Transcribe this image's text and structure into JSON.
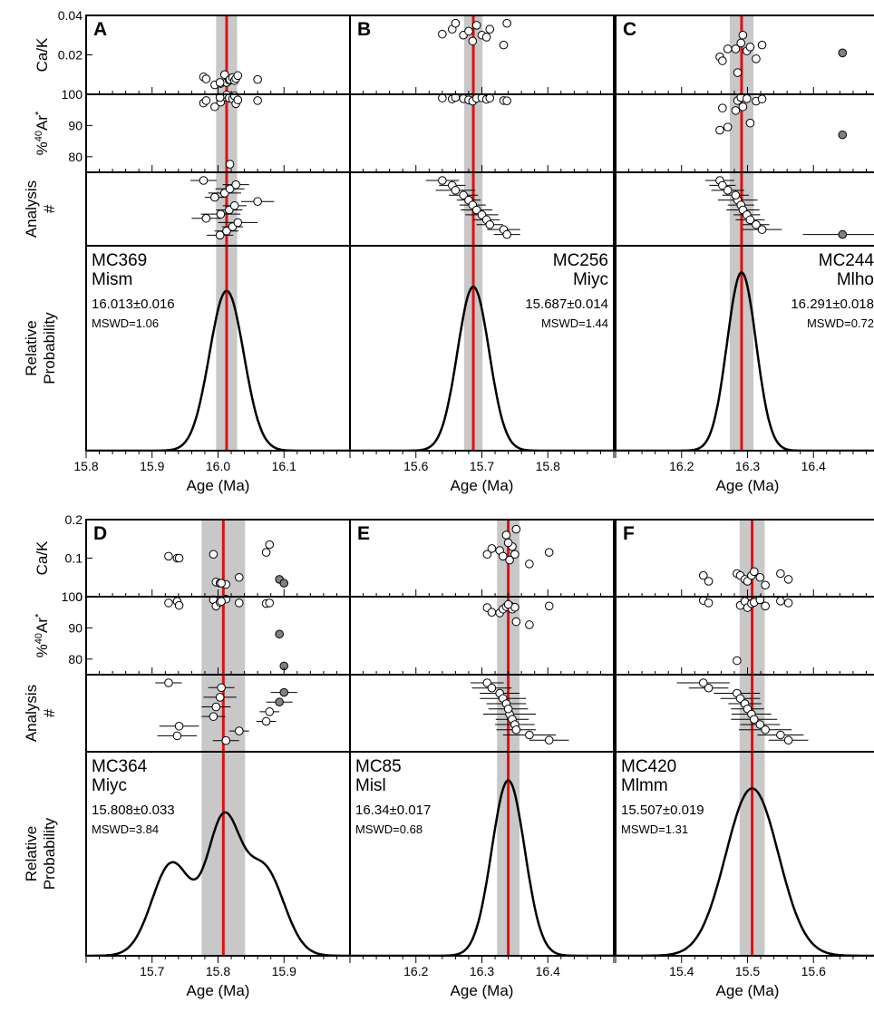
{
  "figure": {
    "ylabels": {
      "cak": "Ca/K",
      "ar_prefix": "%",
      "ar_sup": "40",
      "ar_main": "Ar",
      "ar_star": "*",
      "analysis": "Analysis",
      "analysis_hash": "#",
      "relprob_1": "Relative",
      "relprob_2": "Probability"
    },
    "xlabel": "Age (Ma)"
  },
  "colors": {
    "mean_line": "#e01010",
    "error_band": "#c8c8c8",
    "curve": "#000000",
    "open_marker": "#ffffff",
    "filled_marker": "#808080"
  },
  "chart_data": [
    {
      "panel": "A",
      "type": "scatter",
      "sample": "MC369",
      "unit": "Mism",
      "age": "16.013±0.016",
      "mswd": "MSWD=1.06",
      "mean": 16.013,
      "err": 0.016,
      "xlim": [
        15.8,
        16.2
      ],
      "xticks": [
        "15.8",
        "15.9",
        "16.0",
        "16.1"
      ],
      "xtick_values": [
        15.8,
        15.9,
        16.0,
        16.1
      ],
      "cak_ylim": [
        0,
        0.04
      ],
      "cak_ticks": [
        "0.04",
        "0.02"
      ],
      "cak_tick_values": [
        0.04,
        0.02
      ],
      "ar_ylim": [
        75,
        100
      ],
      "ar_ticks": [
        "100",
        "90",
        "80"
      ],
      "ar_tick_values": [
        100,
        90,
        80
      ],
      "curve": {
        "components": [
          {
            "mu": 16.013,
            "sigma": 0.026,
            "w": 1
          }
        ],
        "peak": 0.78
      },
      "points": [
        {
          "age": 15.978,
          "cak": 0.0088,
          "ar": 97.2,
          "err": 0.02
        },
        {
          "age": 15.982,
          "cak": 0.0078,
          "ar": 98.0,
          "err": 0.022
        },
        {
          "age": 15.995,
          "cak": 0.0048,
          "ar": 96.0,
          "err": 0.015
        },
        {
          "age": 16.004,
          "cak": 0.0055,
          "ar": 97.5,
          "err": 0.03
        },
        {
          "age": 16.01,
          "cak": 0.01,
          "ar": 99.2,
          "err": 0.025
        },
        {
          "age": 16.013,
          "cak": 0.006,
          "ar": 99.8,
          "err": 0.018
        },
        {
          "age": 16.017,
          "cak": 0.007,
          "ar": 98.8,
          "err": 0.02
        },
        {
          "age": 16.018,
          "cak": 0.0075,
          "ar": 77.6,
          "err": 0.022
        },
        {
          "age": 16.022,
          "cak": 0.0085,
          "ar": 98.5,
          "err": 0.016
        },
        {
          "age": 16.025,
          "cak": 0.007,
          "ar": 99.5,
          "err": 0.018
        },
        {
          "age": 16.027,
          "cak": 0.008,
          "ar": 97.0,
          "err": 0.02
        },
        {
          "age": 16.03,
          "cak": 0.0095,
          "ar": 98.2,
          "err": 0.03
        },
        {
          "age": 16.06,
          "cak": 0.0075,
          "ar": 98.0,
          "err": 0.025
        },
        {
          "age": 16.003,
          "cak": 0.006,
          "ar": 99.0,
          "err": 0.02
        }
      ],
      "label_side": "left"
    },
    {
      "panel": "B",
      "type": "scatter",
      "sample": "MC256",
      "unit": "Miyc",
      "age": "15.687±0.014",
      "mswd": "MSWD=1.44",
      "mean": 15.687,
      "err": 0.014,
      "xlim": [
        15.5,
        15.9
      ],
      "xticks": [
        "15.6",
        "15.7",
        "15.8"
      ],
      "xtick_values": [
        15.6,
        15.7,
        15.8
      ],
      "cak_ylim": [
        0,
        0.04
      ],
      "cak_ticks": [],
      "cak_tick_values": [],
      "ar_ylim": [
        75,
        100
      ],
      "ar_ticks": [],
      "ar_tick_values": [],
      "curve": {
        "components": [
          {
            "mu": 15.687,
            "sigma": 0.024,
            "w": 1
          }
        ],
        "peak": 0.8
      },
      "points": [
        {
          "age": 15.64,
          "cak": 0.0305,
          "ar": 98.8,
          "err": 0.025
        },
        {
          "age": 15.655,
          "cak": 0.033,
          "ar": 98.5,
          "err": 0.02
        },
        {
          "age": 15.66,
          "cak": 0.036,
          "ar": 99.0,
          "err": 0.03
        },
        {
          "age": 15.672,
          "cak": 0.03,
          "ar": 98.6,
          "err": 0.022
        },
        {
          "age": 15.68,
          "cak": 0.032,
          "ar": 98.2,
          "err": 0.018
        },
        {
          "age": 15.686,
          "cak": 0.027,
          "ar": 97.8,
          "err": 0.02
        },
        {
          "age": 15.692,
          "cak": 0.035,
          "ar": 98.7,
          "err": 0.024
        },
        {
          "age": 15.7,
          "cak": 0.03,
          "ar": 98.9,
          "err": 0.025
        },
        {
          "age": 15.707,
          "cak": 0.029,
          "ar": 98.4,
          "err": 0.02
        },
        {
          "age": 15.712,
          "cak": 0.033,
          "ar": 98.8,
          "err": 0.02
        },
        {
          "age": 15.733,
          "cak": 0.025,
          "ar": 98.0,
          "err": 0.025
        },
        {
          "age": 15.738,
          "cak": 0.036,
          "ar": 97.9,
          "err": 0.02
        }
      ],
      "label_side": "right"
    },
    {
      "panel": "C",
      "type": "scatter",
      "sample": "MC244",
      "unit": "Mlho",
      "age": "16.291±0.018",
      "mswd": "MSWD=0.72",
      "mean": 16.291,
      "err": 0.018,
      "xlim": [
        16.1,
        16.5
      ],
      "xticks": [
        "16.2",
        "16.3",
        "16.4"
      ],
      "xtick_values": [
        16.2,
        16.3,
        16.4
      ],
      "cak_ylim": [
        0,
        0.04
      ],
      "cak_ticks": [],
      "cak_tick_values": [],
      "ar_ylim": [
        75,
        100
      ],
      "ar_ticks": [],
      "ar_tick_values": [],
      "curve": {
        "components": [
          {
            "mu": 16.291,
            "sigma": 0.022,
            "w": 1
          }
        ],
        "peak": 0.87
      },
      "points": [
        {
          "age": 16.258,
          "cak": 0.019,
          "ar": 88.5,
          "err": 0.022
        },
        {
          "age": 16.262,
          "cak": 0.017,
          "ar": 95.6,
          "err": 0.02
        },
        {
          "age": 16.27,
          "cak": 0.023,
          "ar": 89.5,
          "err": 0.025
        },
        {
          "age": 16.285,
          "cak": 0.011,
          "ar": 98.0,
          "err": 0.03
        },
        {
          "age": 16.29,
          "cak": 0.026,
          "ar": 99.0,
          "err": 0.02
        },
        {
          "age": 16.293,
          "cak": 0.03,
          "ar": 96.0,
          "err": 0.025
        },
        {
          "age": 16.299,
          "cak": 0.022,
          "ar": 98.6,
          "err": 0.02
        },
        {
          "age": 16.304,
          "cak": 0.024,
          "ar": 90.8,
          "err": 0.022
        },
        {
          "age": 16.313,
          "cak": 0.018,
          "ar": 97.8,
          "err": 0.02
        },
        {
          "age": 16.322,
          "cak": 0.025,
          "ar": 98.5,
          "err": 0.03
        },
        {
          "age": 16.282,
          "cak": 0.023,
          "ar": 94.8,
          "err": 0.02
        },
        {
          "age": 16.444,
          "cak": 0.021,
          "ar": 87.0,
          "err": 0.06,
          "filled": true
        }
      ],
      "label_side": "right"
    },
    {
      "panel": "D",
      "type": "scatter",
      "sample": "MC364",
      "unit": "Miyc",
      "age": "15.808±0.033",
      "mswd": "MSWD=3.84",
      "mean": 15.808,
      "err": 0.033,
      "xlim": [
        15.6,
        16.0
      ],
      "xticks": [
        "15.7",
        "15.8",
        "15.9"
      ],
      "xtick_values": [
        15.7,
        15.8,
        15.9
      ],
      "cak_ylim": [
        0,
        0.2
      ],
      "cak_ticks": [
        "0.2",
        "0.1",
        "0"
      ],
      "cak_tick_values": [
        0.2,
        0.1,
        0
      ],
      "ar_ylim": [
        75,
        100
      ],
      "ar_ticks": [
        "100",
        "90",
        "80"
      ],
      "ar_tick_values": [
        100,
        90,
        80
      ],
      "curve": {
        "components": [
          {
            "mu": 15.73,
            "sigma": 0.03,
            "w": 0.3
          },
          {
            "mu": 15.808,
            "sigma": 0.025,
            "w": 0.42
          },
          {
            "mu": 15.87,
            "sigma": 0.03,
            "w": 0.28
          }
        ],
        "peak": 0.7
      },
      "points": [
        {
          "age": 15.725,
          "cak": 0.105,
          "ar": 98.0,
          "err": 0.02
        },
        {
          "age": 15.738,
          "cak": 0.1,
          "ar": 98.5,
          "err": 0.03
        },
        {
          "age": 15.741,
          "cak": 0.1,
          "ar": 97.2,
          "err": 0.03
        },
        {
          "age": 15.793,
          "cak": 0.11,
          "ar": 99.0,
          "err": 0.018
        },
        {
          "age": 15.797,
          "cak": 0.038,
          "ar": 97.0,
          "err": 0.022
        },
        {
          "age": 15.803,
          "cak": 0.035,
          "ar": 98.2,
          "err": 0.025
        },
        {
          "age": 15.812,
          "cak": 0.032,
          "ar": 99.2,
          "err": 0.02
        },
        {
          "age": 15.832,
          "cak": 0.05,
          "ar": 98.0,
          "err": 0.015
        },
        {
          "age": 15.873,
          "cak": 0.115,
          "ar": 97.8,
          "err": 0.015
        },
        {
          "age": 15.878,
          "cak": 0.135,
          "ar": 98.0,
          "err": 0.015
        },
        {
          "age": 15.805,
          "cak": 0.035,
          "ar": 98.5,
          "err": 0.02
        },
        {
          "age": 15.893,
          "cak": 0.045,
          "ar": 88.0,
          "err": 0.02,
          "filled": true
        },
        {
          "age": 15.9,
          "cak": 0.035,
          "ar": 77.8,
          "err": 0.02,
          "filled": true
        }
      ],
      "label_side": "left"
    },
    {
      "panel": "E",
      "type": "scatter",
      "sample": "MC85",
      "unit": "Misl",
      "age": "16.34±0.017",
      "mswd": "MSWD=0.68",
      "mean": 16.34,
      "err": 0.017,
      "xlim": [
        16.1,
        16.5
      ],
      "xticks": [
        "16.2",
        "16.3",
        "16.4"
      ],
      "xtick_values": [
        16.2,
        16.3,
        16.4
      ],
      "cak_ylim": [
        0,
        0.2
      ],
      "cak_ticks": [],
      "cak_tick_values": [],
      "ar_ylim": [
        75,
        100
      ],
      "ar_ticks": [],
      "ar_tick_values": [],
      "curve": {
        "components": [
          {
            "mu": 16.34,
            "sigma": 0.025,
            "w": 1
          }
        ],
        "peak": 0.86
      },
      "points": [
        {
          "age": 16.308,
          "cak": 0.11,
          "ar": 96.5,
          "err": 0.025
        },
        {
          "age": 16.315,
          "cak": 0.125,
          "ar": 95.0,
          "err": 0.03
        },
        {
          "age": 16.327,
          "cak": 0.12,
          "ar": 94.8,
          "err": 0.03
        },
        {
          "age": 16.332,
          "cak": 0.105,
          "ar": 96.0,
          "err": 0.035
        },
        {
          "age": 16.337,
          "cak": 0.16,
          "ar": 96.8,
          "err": 0.03
        },
        {
          "age": 16.342,
          "cak": 0.095,
          "ar": 97.2,
          "err": 0.04
        },
        {
          "age": 16.346,
          "cak": 0.13,
          "ar": 96.0,
          "err": 0.025
        },
        {
          "age": 16.35,
          "cak": 0.11,
          "ar": 96.6,
          "err": 0.03
        },
        {
          "age": 16.352,
          "cak": 0.175,
          "ar": 92.0,
          "err": 0.03
        },
        {
          "age": 16.372,
          "cak": 0.085,
          "ar": 91.0,
          "err": 0.04
        },
        {
          "age": 16.402,
          "cak": 0.115,
          "ar": 97.0,
          "err": 0.03
        },
        {
          "age": 16.34,
          "cak": 0.14,
          "ar": 97.5,
          "err": 0.03
        }
      ],
      "label_side": "left"
    },
    {
      "panel": "F",
      "type": "scatter",
      "sample": "MC420",
      "unit": "Mlmm",
      "age": "15.507±0.019",
      "mswd": "MSWD=1.31",
      "mean": 15.507,
      "err": 0.019,
      "xlim": [
        15.3,
        15.7
      ],
      "xticks": [
        "15.4",
        "15.5",
        "15.6"
      ],
      "xtick_values": [
        15.4,
        15.5,
        15.6
      ],
      "cak_ylim": [
        0,
        0.2
      ],
      "cak_ticks": [],
      "cak_tick_values": [],
      "ar_ylim": [
        75,
        100
      ],
      "ar_ticks": [],
      "ar_tick_values": [],
      "curve": {
        "components": [
          {
            "mu": 15.507,
            "sigma": 0.04,
            "w": 1
          }
        ],
        "peak": 0.82
      },
      "points": [
        {
          "age": 15.433,
          "cak": 0.055,
          "ar": 98.8,
          "err": 0.04
        },
        {
          "age": 15.441,
          "cak": 0.04,
          "ar": 98.0,
          "err": 0.03
        },
        {
          "age": 15.484,
          "cak": 0.06,
          "ar": 79.5,
          "err": 0.035
        },
        {
          "age": 15.489,
          "cak": 0.055,
          "ar": 97.2,
          "err": 0.03
        },
        {
          "age": 15.496,
          "cak": 0.045,
          "ar": 98.5,
          "err": 0.025
        },
        {
          "age": 15.5,
          "cak": 0.04,
          "ar": 96.5,
          "err": 0.025
        },
        {
          "age": 15.506,
          "cak": 0.055,
          "ar": 97.8,
          "err": 0.03
        },
        {
          "age": 15.51,
          "cak": 0.065,
          "ar": 98.2,
          "err": 0.035
        },
        {
          "age": 15.519,
          "cak": 0.05,
          "ar": 99.0,
          "err": 0.03
        },
        {
          "age": 15.527,
          "cak": 0.03,
          "ar": 97.0,
          "err": 0.04
        },
        {
          "age": 15.55,
          "cak": 0.06,
          "ar": 98.6,
          "err": 0.035
        },
        {
          "age": 15.562,
          "cak": 0.045,
          "ar": 98.0,
          "err": 0.03
        }
      ],
      "label_side": "left"
    }
  ]
}
